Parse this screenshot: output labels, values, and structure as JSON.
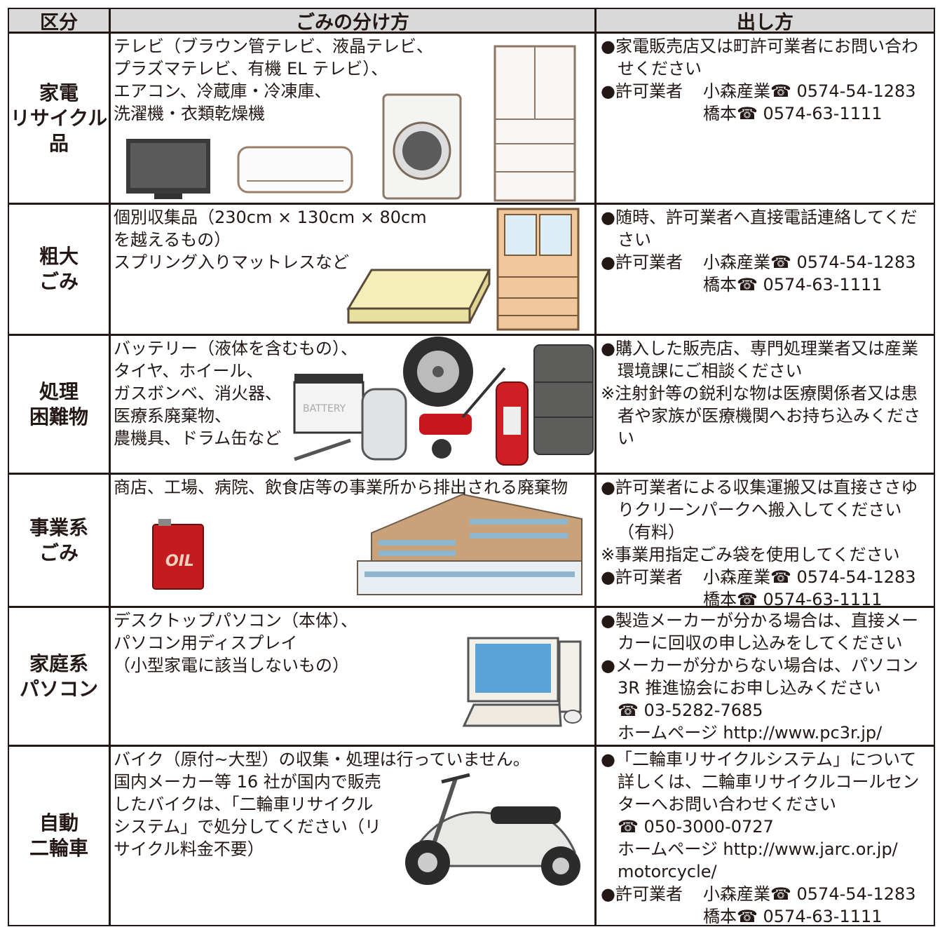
{
  "header": {
    "columns": [
      "区分",
      "ごみの分け方",
      "出し方"
    ]
  },
  "rows": [
    {
      "category": [
        "家電",
        "リサイクル",
        "品"
      ],
      "description": [
        "テレビ（ブラウン管テレビ、液晶テレビ、",
        "プラズマテレビ、有機 EL テレビ）、",
        "エアコン、冷蔵庫・冷凍庫、",
        "洗濯機・衣類乾燥機"
      ],
      "method": [
        {
          "lines": [
            "●家電販売店又は町許可業者にお問い合わ",
            "せください"
          ]
        },
        {
          "label": "●許可業者",
          "entries": [
            "小森産業☎ 0574-54-1283",
            "橋本☎ 0574-63-1111"
          ]
        }
      ]
    },
    {
      "category": [
        "粗大",
        "ごみ"
      ],
      "description": [
        "個別収集品（230cm × 130cm × 80cm",
        "を越えるもの）",
        "スプリング入りマットレスなど"
      ],
      "method": [
        {
          "lines": [
            "●随時、許可業者へ直接電話連絡してくだ",
            "さい"
          ]
        },
        {
          "label": "●許可業者",
          "entries": [
            "小森産業☎ 0574-54-1283",
            "橋本☎ 0574-63-1111"
          ]
        }
      ]
    },
    {
      "category": [
        "処理",
        "困難物"
      ],
      "description": [
        "バッテリー（液体を含むもの）、",
        "タイヤ、ホイール、",
        "ガスボンベ、消火器、",
        "医療系廃棄物、",
        "農機具、ドラム缶など"
      ],
      "illustration_text": "BATTERY",
      "method": [
        {
          "lines": [
            "●購入した販売店、専門処理業者又は産業",
            "環境課にご相談ください"
          ]
        },
        {
          "lines": [
            "※注射針等の鋭利な物は医療関係者又は患",
            "者や家族が医療機関へお持ち込みくださ",
            "い"
          ]
        }
      ]
    },
    {
      "category": [
        "事業系",
        "ごみ"
      ],
      "description": [
        "商店、工場、病院、飲食店等の事業所から排出される廃棄物"
      ],
      "illustration_text": "OIL",
      "method": [
        {
          "lines": [
            "●許可業者による収集運搬又は直接ささゆ",
            "りクリーンパークへ搬入してください",
            "（有料）"
          ]
        },
        {
          "lines": [
            "※事業用指定ごみ袋を使用してください"
          ]
        },
        {
          "label": "●許可業者",
          "entries": [
            "小森産業☎ 0574-54-1283",
            "橋本☎ 0574-63-1111"
          ]
        }
      ]
    },
    {
      "category": [
        "家庭系",
        "パソコン"
      ],
      "description": [
        "デスクトップパソコン（本体）、",
        "パソコン用ディスプレイ",
        "（小型家電に該当しないもの）"
      ],
      "method": [
        {
          "lines": [
            "●製造メーカーが分かる場合は、直接メー",
            "カーに回収の申し込みをしてください"
          ]
        },
        {
          "lines": [
            "●メーカーが分からない場合は、パソコン",
            "3R 推進協会にお申し込みください",
            "☎ 03-5282-7685",
            "ホームページ http://www.pc3r.jp/"
          ]
        }
      ]
    },
    {
      "category": [
        "自動",
        "二輪車"
      ],
      "description": [
        "バイク（原付~大型）の収集・処理は行っていません。",
        "国内メーカー等 16 社が国内で販売",
        "したバイクは、「二輪車リサイクル",
        "システム」で処分してください（リ",
        "サイクル料金不要）"
      ],
      "method": [
        {
          "lines": [
            "●「二輪車リサイクルシステム」について",
            "詳しくは、二輪車リサイクルコールセン",
            "ターへお問い合わせください",
            "☎ 050-3000-0727",
            "ホームページ http://www.jarc.or.jp/",
            "motorcycle/"
          ]
        },
        {
          "label": "●許可業者",
          "entries": [
            "小森産業☎ 0574-54-1283",
            "橋本☎ 0574-63-1111"
          ]
        }
      ]
    }
  ]
}
